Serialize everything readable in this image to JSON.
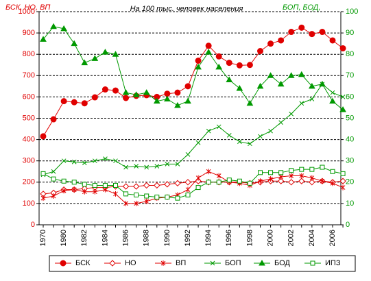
{
  "chart_data": {
    "type": "line",
    "annotations": [
      "БСК, НО, ВП",
      "На 100 тыс. человек населения",
      "БОП, БОД,"
    ],
    "categories": [
      "1970",
      null,
      "1980",
      null,
      "1982",
      null,
      "1984",
      null,
      "1986",
      null,
      "1988",
      null,
      "1990",
      null,
      "1992",
      null,
      "1994",
      null,
      "1996",
      null,
      "1998",
      null,
      "2000",
      null,
      "2002",
      null,
      "2004",
      null,
      "2006",
      null
    ],
    "ylim": [
      0,
      1000
    ],
    "yticks": [
      0,
      100,
      200,
      300,
      400,
      500,
      600,
      700,
      800,
      900,
      1000
    ],
    "y2lim": [
      0,
      100
    ],
    "y2ticks": [
      0,
      10,
      20,
      30,
      40,
      50,
      60,
      70,
      80,
      90,
      100
    ],
    "grid": true,
    "legend": "bottom",
    "y_color": "#e00000",
    "y2_color": "#009900",
    "series": [
      {
        "name": "БСК",
        "color": "#e00000",
        "marker": "circle",
        "values": [
          415,
          495,
          580,
          575,
          570,
          598,
          635,
          630,
          595,
          605,
          608,
          600,
          615,
          620,
          650,
          770,
          840,
          790,
          760,
          748,
          750,
          815,
          850,
          865,
          905,
          925,
          895,
          905,
          865,
          828
        ]
      },
      {
        "name": "НО",
        "color": "#e00000",
        "marker": "diamond",
        "values": [
          145,
          150,
          165,
          165,
          170,
          175,
          175,
          180,
          180,
          180,
          185,
          185,
          190,
          195,
          200,
          205,
          200,
          200,
          200,
          200,
          195,
          200,
          205,
          205,
          200,
          205,
          200,
          205,
          200,
          205
        ]
      },
      {
        "name": "ВП",
        "color": "#e00000",
        "marker": "star",
        "values": [
          125,
          135,
          160,
          165,
          155,
          155,
          165,
          145,
          100,
          100,
          110,
          125,
          130,
          140,
          165,
          220,
          250,
          230,
          200,
          195,
          185,
          205,
          215,
          225,
          230,
          230,
          220,
          205,
          195,
          175
        ]
      },
      {
        "name": "БОП",
        "color": "#009900",
        "marker": "x",
        "axis": "y2",
        "values": [
          23.5,
          25,
          30,
          29.5,
          29,
          30,
          31,
          30,
          27,
          27.5,
          27,
          27.5,
          28.5,
          28.5,
          33,
          38.5,
          44,
          46,
          42,
          39,
          38,
          41.5,
          44,
          48,
          52,
          57,
          59,
          66,
          62,
          60
        ]
      },
      {
        "name": "БОД",
        "color": "#009900",
        "marker": "triangle",
        "axis": "y2",
        "values": [
          87,
          93,
          92,
          85,
          76,
          78,
          81,
          80,
          62,
          61,
          62,
          58,
          59,
          56,
          58,
          74,
          81,
          74,
          68,
          64,
          57,
          65,
          70,
          66,
          70,
          70.5,
          65,
          66,
          58,
          54
        ]
      },
      {
        "name": "ИПЗ",
        "color": "#009900",
        "marker": "square",
        "axis": "y2",
        "values": [
          24,
          21.5,
          20.5,
          20,
          19,
          18.5,
          18.5,
          18.5,
          14.5,
          14,
          13.5,
          13,
          13,
          12.5,
          14,
          17.5,
          20,
          20,
          21,
          20.5,
          19.5,
          24.5,
          24.5,
          24.5,
          25.5,
          26,
          26,
          27,
          25,
          24
        ]
      }
    ]
  }
}
